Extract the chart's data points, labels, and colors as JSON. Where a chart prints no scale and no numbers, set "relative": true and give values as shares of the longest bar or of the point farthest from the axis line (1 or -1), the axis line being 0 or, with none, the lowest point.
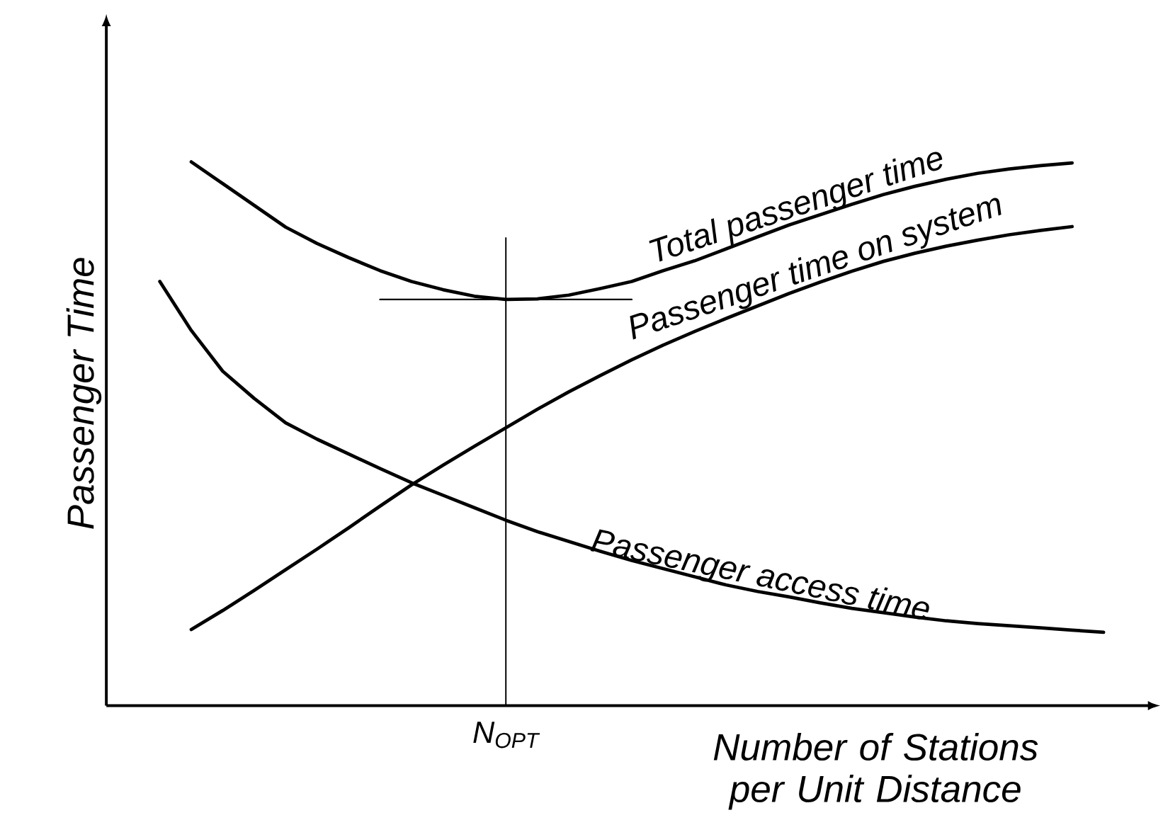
{
  "chart_data": {
    "type": "line",
    "relative": true,
    "xlabel": "Number of Stations per Unit Distance",
    "ylabel": "Passenger Time",
    "legend": false,
    "marker": "none",
    "line_style": "solid",
    "annotations": [
      "N$_{OPT}$"
    ],
    "categories": [
      null,
      null,
      null,
      null,
      null,
      null,
      null,
      null,
      null,
      null,
      null,
      null,
      null,
      null,
      null,
      null,
      null,
      null,
      null,
      null,
      null,
      null,
      null,
      null,
      null,
      null,
      null,
      null,
      null,
      null,
      null
    ],
    "series": [
      {
        "name": "Total passenger time",
        "color": "#000000",
        "values": [
          null,
          1.0,
          0.96,
          0.92,
          0.88,
          0.85,
          0.824,
          0.8,
          0.78,
          0.765,
          0.753,
          0.747,
          0.748,
          0.755,
          0.767,
          0.78,
          0.8,
          0.818,
          0.84,
          0.862,
          0.884,
          0.903,
          0.922,
          0.94,
          0.955,
          0.968,
          0.979,
          0.987,
          0.993,
          0.998,
          null
        ]
      },
      {
        "name": "Passenger time on system",
        "color": "#000000",
        "values": [
          null,
          0.14,
          0.175,
          0.212,
          0.25,
          0.288,
          0.327,
          0.367,
          0.406,
          0.442,
          0.477,
          0.511,
          0.545,
          0.577,
          0.607,
          0.636,
          0.663,
          0.688,
          0.712,
          0.735,
          0.758,
          0.779,
          0.799,
          0.817,
          0.832,
          0.845,
          0.856,
          0.866,
          0.874,
          0.881,
          null
        ]
      },
      {
        "name": "Passenger access time",
        "color": "#000000",
        "values": [
          0.78,
          0.69,
          0.615,
          0.565,
          0.52,
          0.49,
          0.463,
          0.436,
          0.41,
          0.387,
          0.364,
          0.341,
          0.32,
          0.302,
          0.284,
          0.267,
          0.252,
          0.237,
          0.222,
          0.21,
          0.2,
          0.189,
          0.179,
          0.171,
          0.163,
          0.156,
          0.151,
          0.147,
          0.143,
          0.139,
          0.135
        ]
      },
      {
        "type": "line",
        "color": "#000000",
        "values": [
          null,
          null,
          null,
          null,
          null,
          null,
          null,
          0.747,
          0.747,
          0.747,
          0.747,
          0.747,
          0.747,
          0.747,
          0.747,
          0.747,
          null,
          null,
          null,
          null,
          null,
          null,
          null,
          null,
          null,
          null,
          null,
          null,
          null,
          null,
          null
        ]
      }
    ]
  }
}
